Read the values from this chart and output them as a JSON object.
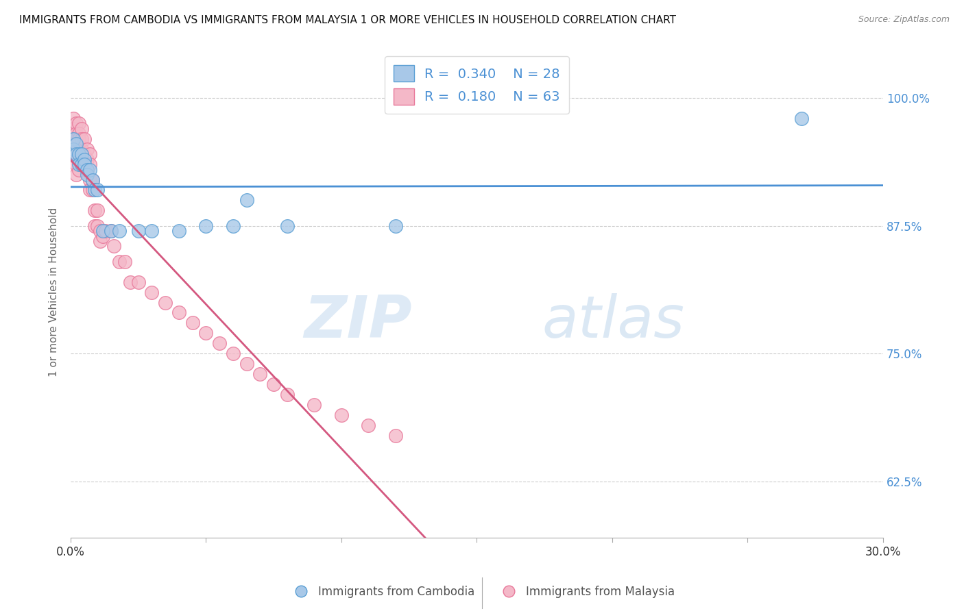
{
  "title": "IMMIGRANTS FROM CAMBODIA VS IMMIGRANTS FROM MALAYSIA 1 OR MORE VEHICLES IN HOUSEHOLD CORRELATION CHART",
  "source": "Source: ZipAtlas.com",
  "ylabel": "1 or more Vehicles in Household",
  "ytick_labels": [
    "100.0%",
    "87.5%",
    "75.0%",
    "62.5%"
  ],
  "ytick_values": [
    1.0,
    0.875,
    0.75,
    0.625
  ],
  "xlim": [
    0.0,
    0.3
  ],
  "ylim": [
    0.57,
    1.05
  ],
  "legend_blue_R": "0.340",
  "legend_blue_N": "28",
  "legend_pink_R": "0.180",
  "legend_pink_N": "63",
  "legend_blue_label": "Immigrants from Cambodia",
  "legend_pink_label": "Immigrants from Malaysia",
  "watermark_zip": "ZIP",
  "watermark_atlas": "atlas",
  "blue_color": "#a8c8e8",
  "pink_color": "#f4b8c8",
  "blue_edge_color": "#5a9fd4",
  "pink_edge_color": "#e8789a",
  "blue_line_color": "#4a90d4",
  "pink_line_color": "#d45880",
  "blue_x": [
    0.001,
    0.001,
    0.002,
    0.002,
    0.003,
    0.003,
    0.004,
    0.004,
    0.005,
    0.005,
    0.006,
    0.006,
    0.007,
    0.008,
    0.009,
    0.01,
    0.012,
    0.015,
    0.018,
    0.025,
    0.03,
    0.04,
    0.05,
    0.06,
    0.065,
    0.08,
    0.12,
    0.27
  ],
  "blue_y": [
    0.96,
    0.95,
    0.955,
    0.945,
    0.945,
    0.935,
    0.945,
    0.935,
    0.94,
    0.935,
    0.93,
    0.925,
    0.93,
    0.92,
    0.91,
    0.91,
    0.87,
    0.87,
    0.87,
    0.87,
    0.87,
    0.87,
    0.875,
    0.875,
    0.9,
    0.875,
    0.875,
    0.98
  ],
  "pink_x": [
    0.001,
    0.001,
    0.001,
    0.001,
    0.001,
    0.001,
    0.002,
    0.002,
    0.002,
    0.002,
    0.002,
    0.002,
    0.002,
    0.003,
    0.003,
    0.003,
    0.003,
    0.003,
    0.003,
    0.004,
    0.004,
    0.004,
    0.004,
    0.005,
    0.005,
    0.005,
    0.006,
    0.006,
    0.006,
    0.007,
    0.007,
    0.007,
    0.007,
    0.008,
    0.008,
    0.009,
    0.009,
    0.01,
    0.01,
    0.011,
    0.011,
    0.012,
    0.013,
    0.015,
    0.016,
    0.018,
    0.02,
    0.022,
    0.025,
    0.03,
    0.035,
    0.04,
    0.045,
    0.05,
    0.055,
    0.06,
    0.065,
    0.07,
    0.075,
    0.08,
    0.09,
    0.1,
    0.11,
    0.12
  ],
  "pink_y": [
    0.98,
    0.97,
    0.96,
    0.955,
    0.95,
    0.945,
    0.975,
    0.965,
    0.955,
    0.95,
    0.945,
    0.935,
    0.925,
    0.975,
    0.965,
    0.96,
    0.95,
    0.94,
    0.93,
    0.97,
    0.96,
    0.95,
    0.94,
    0.96,
    0.945,
    0.935,
    0.95,
    0.94,
    0.93,
    0.945,
    0.935,
    0.92,
    0.91,
    0.92,
    0.91,
    0.89,
    0.875,
    0.89,
    0.875,
    0.87,
    0.86,
    0.865,
    0.87,
    0.87,
    0.855,
    0.84,
    0.84,
    0.82,
    0.82,
    0.81,
    0.8,
    0.79,
    0.78,
    0.77,
    0.76,
    0.75,
    0.74,
    0.73,
    0.72,
    0.71,
    0.7,
    0.69,
    0.68,
    0.67
  ]
}
